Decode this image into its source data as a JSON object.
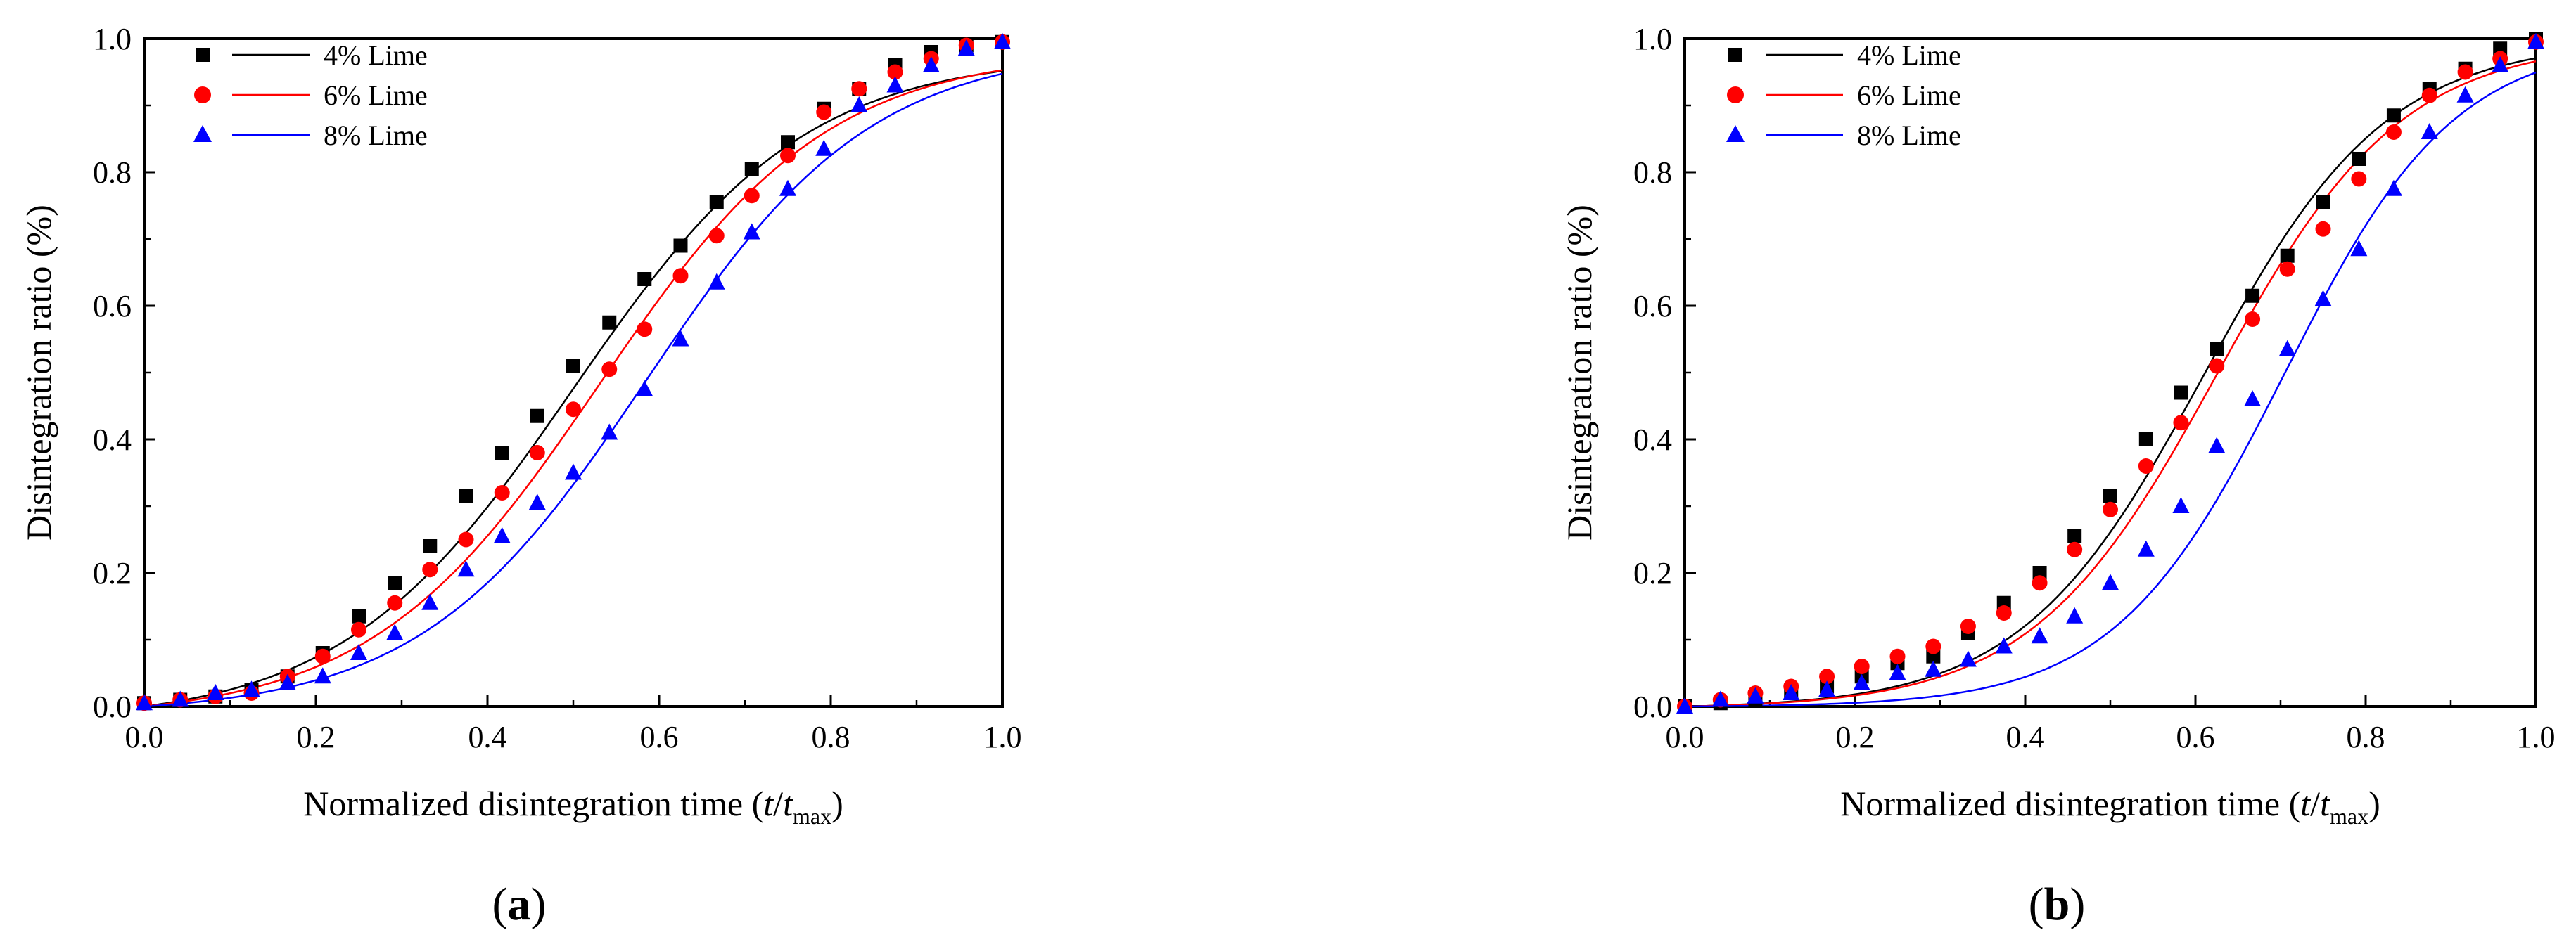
{
  "chart_data": [
    {
      "type": "scatter",
      "panel_label": "a",
      "xlabel_prefix": "Normalized disintegration time (",
      "xlabel_var": "t",
      "xlabel_slash": "/",
      "xlabel_var2": "t",
      "xlabel_sub": "max",
      "xlabel_suffix": ")",
      "ylabel": "Disintegration ratio (%)",
      "xlim": [
        0.0,
        1.0
      ],
      "ylim": [
        0.0,
        1.0
      ],
      "xticks": [
        "0.0",
        "0.2",
        "0.4",
        "0.6",
        "0.8",
        "1.0"
      ],
      "yticks": [
        "0.0",
        "0.2",
        "0.4",
        "0.6",
        "0.8",
        "1.0"
      ],
      "legend_position": "top-left",
      "series": [
        {
          "name": "4% Lime",
          "color": "#000000",
          "marker": "square",
          "x": [
            0.0,
            0.042,
            0.083,
            0.125,
            0.167,
            0.208,
            0.25,
            0.292,
            0.333,
            0.375,
            0.417,
            0.458,
            0.5,
            0.542,
            0.583,
            0.625,
            0.667,
            0.708,
            0.75,
            0.792,
            0.833,
            0.875,
            0.917,
            0.958,
            1.0
          ],
          "y": [
            0.005,
            0.01,
            0.015,
            0.025,
            0.045,
            0.08,
            0.135,
            0.185,
            0.24,
            0.315,
            0.38,
            0.435,
            0.51,
            0.575,
            0.64,
            0.69,
            0.755,
            0.805,
            0.845,
            0.895,
            0.925,
            0.96,
            0.98,
            0.99,
            0.995
          ],
          "fit": {
            "x0": 0.5,
            "k": 7.4
          }
        },
        {
          "name": "6% Lime",
          "color": "#ff0000",
          "marker": "circle",
          "x": [
            0.0,
            0.042,
            0.083,
            0.125,
            0.167,
            0.208,
            0.25,
            0.292,
            0.333,
            0.375,
            0.417,
            0.458,
            0.5,
            0.542,
            0.583,
            0.625,
            0.667,
            0.708,
            0.75,
            0.792,
            0.833,
            0.875,
            0.917,
            0.958,
            1.0
          ],
          "y": [
            0.005,
            0.01,
            0.015,
            0.02,
            0.045,
            0.075,
            0.115,
            0.155,
            0.205,
            0.25,
            0.32,
            0.38,
            0.445,
            0.505,
            0.565,
            0.645,
            0.705,
            0.765,
            0.825,
            0.89,
            0.925,
            0.95,
            0.97,
            0.99,
            0.995
          ],
          "fit": {
            "x0": 0.53,
            "k": 7.5
          }
        },
        {
          "name": "8% Lime",
          "color": "#0000ff",
          "marker": "triangle",
          "x": [
            0.0,
            0.042,
            0.083,
            0.125,
            0.167,
            0.208,
            0.25,
            0.292,
            0.333,
            0.375,
            0.417,
            0.458,
            0.5,
            0.542,
            0.583,
            0.625,
            0.667,
            0.708,
            0.75,
            0.792,
            0.833,
            0.875,
            0.917,
            0.958,
            1.0
          ],
          "y": [
            0.005,
            0.01,
            0.02,
            0.025,
            0.035,
            0.045,
            0.08,
            0.11,
            0.155,
            0.205,
            0.255,
            0.305,
            0.35,
            0.41,
            0.475,
            0.55,
            0.635,
            0.71,
            0.775,
            0.835,
            0.9,
            0.93,
            0.96,
            0.985,
            0.995
          ],
          "fit": {
            "x0": 0.585,
            "k": 7.6
          }
        }
      ]
    },
    {
      "type": "scatter",
      "panel_label": "b",
      "xlabel_prefix": "Normalized disintegration time (",
      "xlabel_var": "t",
      "xlabel_slash": "/",
      "xlabel_var2": "t",
      "xlabel_sub": "max",
      "xlabel_suffix": ")",
      "ylabel": "Disintegration ratio (%)",
      "xlim": [
        0.0,
        1.0
      ],
      "ylim": [
        0.0,
        1.0
      ],
      "xticks": [
        "0.0",
        "0.2",
        "0.4",
        "0.6",
        "0.8",
        "1.0"
      ],
      "yticks": [
        "0.0",
        "0.2",
        "0.4",
        "0.6",
        "0.8",
        "1.0"
      ],
      "legend_position": "top-left",
      "series": [
        {
          "name": "4% Lime",
          "color": "#000000",
          "marker": "square",
          "x": [
            0.0,
            0.042,
            0.083,
            0.125,
            0.167,
            0.208,
            0.25,
            0.292,
            0.333,
            0.375,
            0.417,
            0.458,
            0.5,
            0.542,
            0.583,
            0.625,
            0.667,
            0.708,
            0.75,
            0.792,
            0.833,
            0.875,
            0.917,
            0.958,
            1.0
          ],
          "y": [
            0.0,
            0.005,
            0.01,
            0.02,
            0.03,
            0.045,
            0.065,
            0.075,
            0.11,
            0.155,
            0.2,
            0.255,
            0.315,
            0.4,
            0.47,
            0.535,
            0.615,
            0.675,
            0.755,
            0.82,
            0.885,
            0.925,
            0.955,
            0.985,
            1.0
          ],
          "fit": {
            "x0": 0.61,
            "k": 9.3
          }
        },
        {
          "name": "6% Lime",
          "color": "#ff0000",
          "marker": "circle",
          "x": [
            0.0,
            0.042,
            0.083,
            0.125,
            0.167,
            0.208,
            0.25,
            0.292,
            0.333,
            0.375,
            0.417,
            0.458,
            0.5,
            0.542,
            0.583,
            0.625,
            0.667,
            0.708,
            0.75,
            0.792,
            0.833,
            0.875,
            0.917,
            0.958,
            1.0
          ],
          "y": [
            0.0,
            0.01,
            0.02,
            0.03,
            0.045,
            0.06,
            0.075,
            0.09,
            0.12,
            0.14,
            0.185,
            0.235,
            0.295,
            0.36,
            0.425,
            0.51,
            0.58,
            0.655,
            0.715,
            0.79,
            0.86,
            0.915,
            0.95,
            0.97,
            0.995
          ],
          "fit": {
            "x0": 0.625,
            "k": 9.2
          }
        },
        {
          "name": "8% Lime",
          "color": "#0000ff",
          "marker": "triangle",
          "x": [
            0.0,
            0.042,
            0.083,
            0.125,
            0.167,
            0.208,
            0.25,
            0.292,
            0.333,
            0.375,
            0.417,
            0.458,
            0.5,
            0.542,
            0.583,
            0.625,
            0.667,
            0.708,
            0.75,
            0.792,
            0.833,
            0.875,
            0.917,
            0.958,
            1.0
          ],
          "y": [
            0.0,
            0.01,
            0.015,
            0.02,
            0.025,
            0.035,
            0.05,
            0.055,
            0.07,
            0.09,
            0.105,
            0.135,
            0.185,
            0.235,
            0.3,
            0.39,
            0.46,
            0.535,
            0.61,
            0.685,
            0.775,
            0.86,
            0.915,
            0.96,
            0.995
          ],
          "fit": {
            "x0": 0.705,
            "k": 10.0
          }
        }
      ]
    }
  ]
}
